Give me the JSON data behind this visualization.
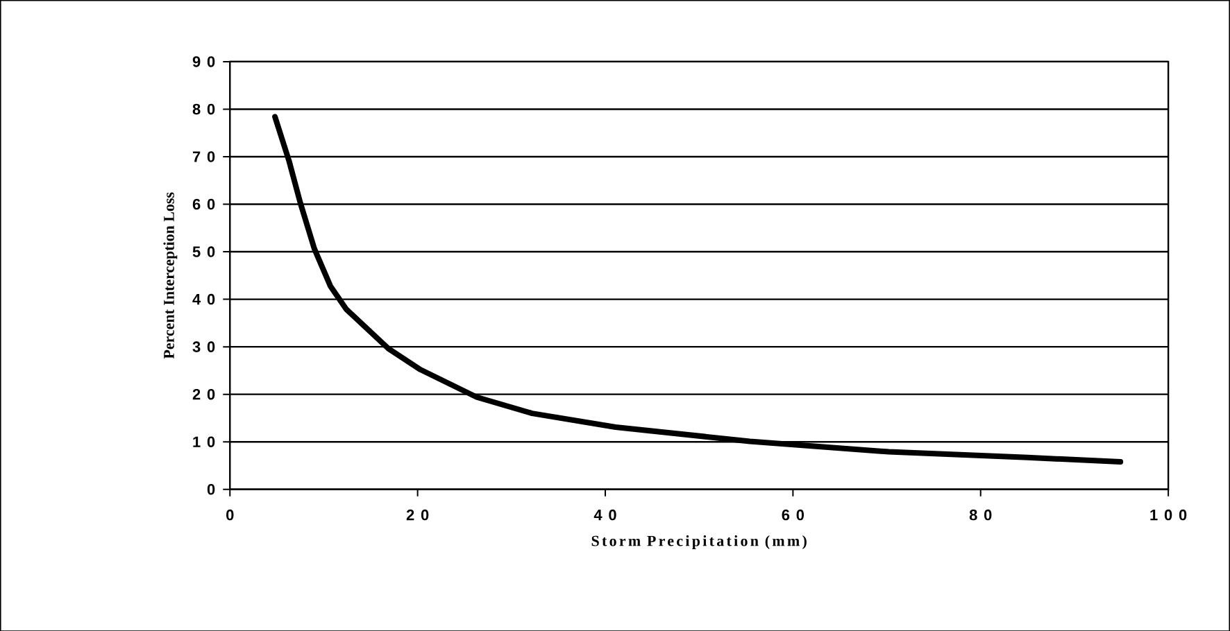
{
  "chart_data": {
    "type": "line",
    "xlabel": "Storm Precipitation (mm)",
    "ylabel": "Percent Interception Loss",
    "x": [
      4.8,
      6.3,
      7.5,
      9.0,
      10.7,
      12.4,
      16.9,
      20.3,
      26.3,
      32.2,
      41.1,
      55.4,
      70.2,
      85.0,
      94.9
    ],
    "values": [
      78.4,
      69.1,
      60.3,
      50.6,
      42.8,
      37.9,
      29.6,
      25.2,
      19.4,
      16.0,
      13.1,
      10.1,
      7.9,
      6.7,
      5.8
    ],
    "color": "#000000",
    "xlim": [
      0,
      100
    ],
    "ylim": [
      0,
      90
    ],
    "xticks": [
      0,
      20,
      40,
      60,
      80,
      100
    ],
    "yticks": [
      0,
      10,
      20,
      30,
      40,
      50,
      60,
      70,
      80,
      90
    ],
    "grid": "y",
    "marker": "none",
    "line_style": "solid"
  }
}
